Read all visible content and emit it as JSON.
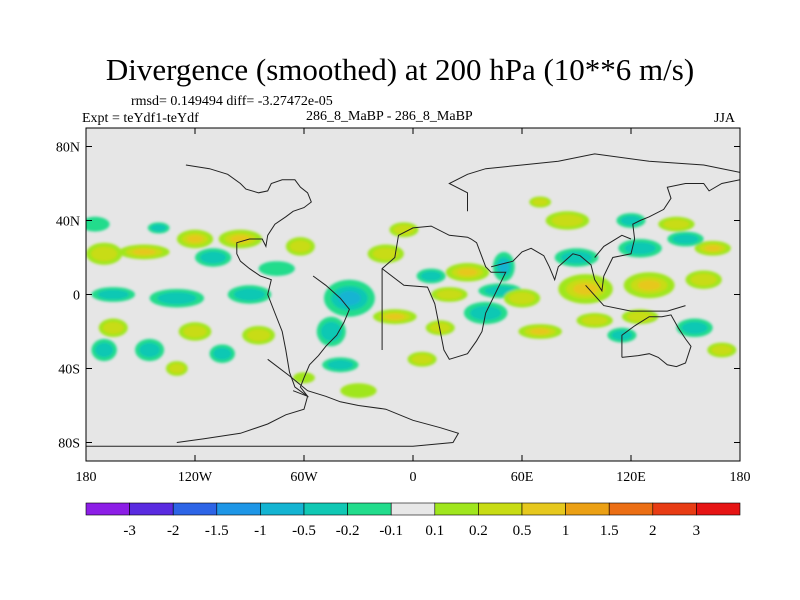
{
  "chart_data": {
    "type": "heatmap",
    "title": "Divergence (smoothed) at 200 hPa (10**6 m/s)",
    "rmsd_text": "rmsd= 0.149494  diff= -3.27472e-05",
    "expt_text": "Expt = teYdf1-teYdf",
    "case_text": "286_8_MaBP - 286_8_MaBP",
    "season": "JJA",
    "x_ticks": [
      {
        "value": -180,
        "label": "180"
      },
      {
        "value": -120,
        "label": "120W"
      },
      {
        "value": -60,
        "label": "60W"
      },
      {
        "value": 0,
        "label": "0"
      },
      {
        "value": 60,
        "label": "60E"
      },
      {
        "value": 120,
        "label": "120E"
      },
      {
        "value": 180,
        "label": "180"
      }
    ],
    "y_ticks": [
      {
        "value": 80,
        "label": "80N"
      },
      {
        "value": 40,
        "label": "40N"
      },
      {
        "value": 0,
        "label": "0"
      },
      {
        "value": -40,
        "label": "40S"
      },
      {
        "value": -80,
        "label": "80S"
      }
    ],
    "xlim": [
      -180,
      180
    ],
    "ylim": [
      -90,
      90
    ],
    "colorbar": {
      "colors": [
        "#8c1ee6",
        "#5a2be0",
        "#2d64e6",
        "#1e96e6",
        "#14b4d2",
        "#10c8b4",
        "#22dc8c",
        "#e8e8e8",
        "#a0e61e",
        "#c8dc14",
        "#e6c81e",
        "#eba014",
        "#eb6e14",
        "#e83c14",
        "#e61414"
      ],
      "labels": [
        "-3",
        "-2",
        "-1.5",
        "-1",
        "-0.5",
        "-0.2",
        "-0.1",
        "0.1",
        "0.2",
        "0.5",
        "1",
        "1.5",
        "2",
        "3"
      ]
    },
    "blobs": [
      {
        "lon": -170,
        "lat": 22,
        "rlon": 10,
        "rlat": 6,
        "level": 0.3
      },
      {
        "lon": -148,
        "lat": 23,
        "rlon": 14,
        "rlat": 4,
        "level": 0.6
      },
      {
        "lon": -120,
        "lat": 30,
        "rlon": 10,
        "rlat": 5,
        "level": 0.5
      },
      {
        "lon": -95,
        "lat": 30,
        "rlon": 12,
        "rlat": 5,
        "level": 0.8
      },
      {
        "lon": -62,
        "lat": 26,
        "rlon": 8,
        "rlat": 5,
        "level": 0.4
      },
      {
        "lon": -175,
        "lat": 38,
        "rlon": 8,
        "rlat": 4,
        "level": -0.15
      },
      {
        "lon": -140,
        "lat": 36,
        "rlon": 6,
        "rlat": 3,
        "level": -0.3
      },
      {
        "lon": -110,
        "lat": 20,
        "rlon": 10,
        "rlat": 5,
        "level": -0.2
      },
      {
        "lon": -75,
        "lat": 14,
        "rlon": 10,
        "rlat": 4,
        "level": -0.15
      },
      {
        "lon": -165,
        "lat": 0,
        "rlon": 12,
        "rlat": 4,
        "level": -0.4
      },
      {
        "lon": -130,
        "lat": -2,
        "rlon": 15,
        "rlat": 5,
        "level": -0.3
      },
      {
        "lon": -90,
        "lat": 0,
        "rlon": 12,
        "rlat": 5,
        "level": -0.3
      },
      {
        "lon": -35,
        "lat": -2,
        "rlon": 14,
        "rlat": 10,
        "level": -0.7
      },
      {
        "lon": -45,
        "lat": -20,
        "rlon": 8,
        "rlat": 8,
        "level": -0.3
      },
      {
        "lon": -165,
        "lat": -18,
        "rlon": 8,
        "rlat": 5,
        "level": 0.2
      },
      {
        "lon": -120,
        "lat": -20,
        "rlon": 9,
        "rlat": 5,
        "level": 0.25
      },
      {
        "lon": -85,
        "lat": -22,
        "rlon": 9,
        "rlat": 5,
        "level": 0.2
      },
      {
        "lon": -170,
        "lat": -30,
        "rlon": 7,
        "rlat": 6,
        "level": -0.2
      },
      {
        "lon": -145,
        "lat": -30,
        "rlon": 8,
        "rlat": 6,
        "level": -0.3
      },
      {
        "lon": -105,
        "lat": -32,
        "rlon": 7,
        "rlat": 5,
        "level": -0.3
      },
      {
        "lon": -130,
        "lat": -40,
        "rlon": 6,
        "rlat": 4,
        "level": 0.2
      },
      {
        "lon": -60,
        "lat": -45,
        "rlon": 6,
        "rlat": 3,
        "level": 0.15
      },
      {
        "lon": -40,
        "lat": -38,
        "rlon": 10,
        "rlat": 4,
        "level": -0.2
      },
      {
        "lon": -10,
        "lat": -12,
        "rlon": 12,
        "rlat": 4,
        "level": 0.5
      },
      {
        "lon": 15,
        "lat": -18,
        "rlon": 8,
        "rlat": 4,
        "level": 0.3
      },
      {
        "lon": -15,
        "lat": 22,
        "rlon": 10,
        "rlat": 5,
        "level": 0.4
      },
      {
        "lon": -5,
        "lat": 35,
        "rlon": 8,
        "rlat": 4,
        "level": 0.3
      },
      {
        "lon": 10,
        "lat": 10,
        "rlon": 8,
        "rlat": 4,
        "level": -0.2
      },
      {
        "lon": 30,
        "lat": 12,
        "rlon": 12,
        "rlat": 5,
        "level": 0.6
      },
      {
        "lon": 50,
        "lat": 15,
        "rlon": 6,
        "rlat": 8,
        "level": -0.6
      },
      {
        "lon": 48,
        "lat": 2,
        "rlon": 12,
        "rlat": 4,
        "level": -0.25
      },
      {
        "lon": 20,
        "lat": 0,
        "rlon": 10,
        "rlat": 4,
        "level": 0.3
      },
      {
        "lon": 40,
        "lat": -10,
        "rlon": 12,
        "rlat": 6,
        "level": -0.4
      },
      {
        "lon": 60,
        "lat": -2,
        "rlon": 10,
        "rlat": 5,
        "level": 0.4
      },
      {
        "lon": 70,
        "lat": -20,
        "rlon": 12,
        "rlat": 4,
        "level": 0.5
      },
      {
        "lon": 95,
        "lat": 3,
        "rlon": 15,
        "rlat": 8,
        "level": 1.0
      },
      {
        "lon": 100,
        "lat": -14,
        "rlon": 10,
        "rlat": 4,
        "level": 0.4
      },
      {
        "lon": 130,
        "lat": 5,
        "rlon": 14,
        "rlat": 7,
        "level": 0.7
      },
      {
        "lon": 125,
        "lat": -12,
        "rlon": 10,
        "rlat": 4,
        "level": 0.3
      },
      {
        "lon": 115,
        "lat": -22,
        "rlon": 8,
        "rlat": 4,
        "level": -0.3
      },
      {
        "lon": 155,
        "lat": -18,
        "rlon": 10,
        "rlat": 5,
        "level": -0.3
      },
      {
        "lon": 160,
        "lat": 8,
        "rlon": 10,
        "rlat": 5,
        "level": 0.4
      },
      {
        "lon": 165,
        "lat": 25,
        "rlon": 10,
        "rlat": 4,
        "level": 0.5
      },
      {
        "lon": 90,
        "lat": 20,
        "rlon": 12,
        "rlat": 5,
        "level": -0.25
      },
      {
        "lon": 125,
        "lat": 25,
        "rlon": 12,
        "rlat": 5,
        "level": -0.2
      },
      {
        "lon": 150,
        "lat": 30,
        "rlon": 10,
        "rlat": 4,
        "level": -0.2
      },
      {
        "lon": 85,
        "lat": 40,
        "rlon": 12,
        "rlat": 5,
        "level": 0.3
      },
      {
        "lon": 120,
        "lat": 40,
        "rlon": 8,
        "rlat": 4,
        "level": -0.2
      },
      {
        "lon": 145,
        "lat": 38,
        "rlon": 10,
        "rlat": 4,
        "level": 0.25
      },
      {
        "lon": 70,
        "lat": 50,
        "rlon": 6,
        "rlat": 3,
        "level": 0.2
      },
      {
        "lon": -30,
        "lat": -52,
        "rlon": 10,
        "rlat": 4,
        "level": 0.15
      },
      {
        "lon": 5,
        "lat": -35,
        "rlon": 8,
        "rlat": 4,
        "level": 0.2
      },
      {
        "lon": 170,
        "lat": -30,
        "rlon": 8,
        "rlat": 4,
        "level": 0.2
      }
    ],
    "coastlines": [
      [
        [
          -130,
          -80
        ],
        [
          -115,
          -78
        ],
        [
          -95,
          -75
        ],
        [
          -80,
          -70
        ],
        [
          -70,
          -65
        ],
        [
          -60,
          -62
        ],
        [
          -58,
          -55
        ],
        [
          -65,
          -50
        ],
        [
          -68,
          -42
        ],
        [
          -70,
          -30
        ],
        [
          -72,
          -20
        ],
        [
          -76,
          -10
        ],
        [
          -80,
          0
        ],
        [
          -78,
          8
        ],
        [
          -84,
          10
        ],
        [
          -90,
          14
        ],
        [
          -95,
          18
        ],
        [
          -97,
          22
        ],
        [
          -97,
          28
        ],
        [
          -90,
          30
        ],
        [
          -83,
          30
        ],
        [
          -81,
          26
        ],
        [
          -80,
          32
        ],
        [
          -76,
          38
        ],
        [
          -70,
          42
        ],
        [
          -66,
          45
        ],
        [
          -60,
          47
        ],
        [
          -56,
          50
        ],
        [
          -58,
          55
        ],
        [
          -62,
          58
        ],
        [
          -65,
          62
        ],
        [
          -72,
          62
        ],
        [
          -78,
          60
        ],
        [
          -80,
          56
        ],
        [
          -85,
          55
        ],
        [
          -92,
          57
        ],
        [
          -95,
          60
        ],
        [
          -102,
          65
        ],
        [
          -112,
          68
        ],
        [
          -125,
          70
        ]
      ],
      [
        [
          -80,
          -35
        ],
        [
          -68,
          -44
        ],
        [
          -58,
          -52
        ],
        [
          -48,
          -55
        ],
        [
          -40,
          -58
        ],
        [
          -30,
          -60
        ],
        [
          -15,
          -62
        ],
        [
          0,
          -68
        ],
        [
          15,
          -72
        ],
        [
          25,
          -75
        ],
        [
          22,
          -80
        ],
        [
          0,
          -82
        ],
        [
          -40,
          -82
        ],
        [
          -80,
          -82
        ],
        [
          -120,
          -82
        ],
        [
          -180,
          -82
        ]
      ],
      [
        [
          -55,
          10
        ],
        [
          -48,
          5
        ],
        [
          -40,
          -2
        ],
        [
          -35,
          -8
        ],
        [
          -38,
          -15
        ],
        [
          -42,
          -22
        ],
        [
          -48,
          -28
        ],
        [
          -52,
          -33
        ],
        [
          -57,
          -38
        ],
        [
          -60,
          -45
        ],
        [
          -62,
          -50
        ],
        [
          -58,
          -55
        ],
        [
          -66,
          -52
        ]
      ],
      [
        [
          -17,
          -30
        ],
        [
          -17,
          14
        ],
        [
          -10,
          20
        ],
        [
          -8,
          32
        ],
        [
          0,
          36
        ],
        [
          10,
          37
        ],
        [
          20,
          32
        ],
        [
          30,
          31
        ],
        [
          32,
          30
        ],
        [
          35,
          28
        ],
        [
          40,
          15
        ],
        [
          43,
          12
        ],
        [
          51,
          12
        ],
        [
          40,
          -10
        ],
        [
          38,
          -20
        ],
        [
          35,
          -25
        ],
        [
          30,
          -32
        ],
        [
          20,
          -35
        ],
        [
          17,
          -30
        ],
        [
          15,
          -20
        ],
        [
          12,
          -5
        ],
        [
          8,
          4
        ],
        [
          -5,
          5
        ],
        [
          -17,
          14
        ]
      ],
      [
        [
          30,
          45
        ],
        [
          30,
          55
        ],
        [
          20,
          60
        ],
        [
          30,
          65
        ],
        [
          40,
          68
        ],
        [
          60,
          70
        ],
        [
          80,
          72
        ],
        [
          100,
          76
        ],
        [
          130,
          72
        ],
        [
          160,
          70
        ],
        [
          180,
          66
        ]
      ],
      [
        [
          43,
          15
        ],
        [
          55,
          18
        ],
        [
          60,
          23
        ],
        [
          65,
          25
        ],
        [
          72,
          21
        ],
        [
          75,
          15
        ],
        [
          78,
          8
        ],
        [
          80,
          15
        ],
        [
          88,
          22
        ],
        [
          92,
          21
        ],
        [
          98,
          16
        ],
        [
          100,
          8
        ],
        [
          104,
          2
        ],
        [
          105,
          10
        ],
        [
          108,
          16
        ],
        [
          110,
          20
        ],
        [
          120,
          22
        ],
        [
          122,
          30
        ],
        [
          121,
          38
        ],
        [
          125,
          40
        ],
        [
          130,
          42
        ],
        [
          138,
          46
        ],
        [
          142,
          52
        ],
        [
          140,
          58
        ],
        [
          150,
          60
        ],
        [
          160,
          60
        ],
        [
          163,
          56
        ],
        [
          170,
          60
        ],
        [
          180,
          62
        ]
      ],
      [
        [
          115,
          -34
        ],
        [
          115,
          -22
        ],
        [
          122,
          -17
        ],
        [
          130,
          -12
        ],
        [
          137,
          -12
        ],
        [
          142,
          -11
        ],
        [
          146,
          -18
        ],
        [
          150,
          -24
        ],
        [
          153,
          -28
        ],
        [
          150,
          -37
        ],
        [
          145,
          -39
        ],
        [
          140,
          -38
        ],
        [
          135,
          -34
        ],
        [
          130,
          -32
        ],
        [
          124,
          -33
        ],
        [
          115,
          -34
        ]
      ],
      [
        [
          95,
          5
        ],
        [
          105,
          -6
        ],
        [
          120,
          -9
        ],
        [
          140,
          -9
        ],
        [
          150,
          -6
        ]
      ],
      [
        [
          100,
          20
        ],
        [
          105,
          26
        ],
        [
          115,
          32
        ],
        [
          120,
          30
        ]
      ]
    ]
  }
}
